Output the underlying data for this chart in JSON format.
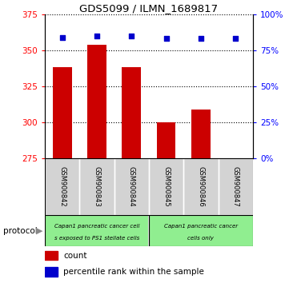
{
  "title": "GDS5099 / ILMN_1689817",
  "samples": [
    "GSM900842",
    "GSM900843",
    "GSM900844",
    "GSM900845",
    "GSM900846",
    "GSM900847"
  ],
  "counts": [
    338,
    354,
    338,
    300,
    309,
    275
  ],
  "percentile_ranks": [
    84,
    85,
    85,
    83,
    83,
    83
  ],
  "ylim_left": [
    275,
    375
  ],
  "ylim_right": [
    0,
    100
  ],
  "yticks_left": [
    275,
    300,
    325,
    350,
    375
  ],
  "yticks_right": [
    0,
    25,
    50,
    75,
    100
  ],
  "bar_color": "#cc0000",
  "dot_color": "#0000cc",
  "protocol_text_left_line1": "Capan1 pancreatic cancer cell",
  "protocol_text_left_line2": "s exposed to PS1 stellate cells",
  "protocol_text_right_line1": "Capan1 pancreatic cancer",
  "protocol_text_right_line2": "cells only",
  "protocol_color": "#90ee90",
  "legend_count_color": "#cc0000",
  "legend_dot_color": "#0000cc",
  "bg_color": "#ffffff",
  "plot_bg_color": "#ffffff",
  "tick_area_color": "#d3d3d3",
  "protocol_label": "protocol"
}
